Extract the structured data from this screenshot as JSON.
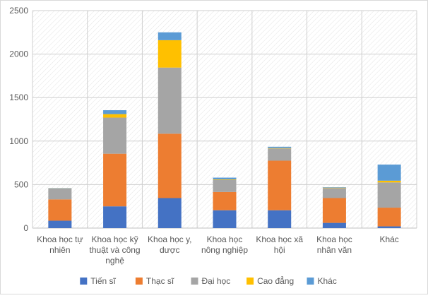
{
  "chart_data": {
    "type": "bar",
    "stacked": true,
    "categories": [
      [
        "Khoa học tự",
        "nhiên"
      ],
      [
        "Khoa học kỹ",
        "thuật và công",
        "nghệ"
      ],
      [
        "Khoa học y,",
        "dược"
      ],
      [
        "Khoa học",
        "nông nghiệp"
      ],
      [
        "Khoa học xã",
        "hội"
      ],
      [
        "Khoa học",
        "nhân văn"
      ],
      [
        "Khác"
      ]
    ],
    "series": [
      {
        "name": "Tiến sĩ",
        "color": "#4472C4",
        "values": [
          85,
          250,
          345,
          205,
          205,
          60,
          20
        ]
      },
      {
        "name": "Thạc sĩ",
        "color": "#ED7D31",
        "values": [
          245,
          605,
          740,
          210,
          570,
          285,
          215
        ]
      },
      {
        "name": "Đại học",
        "color": "#A5A5A5",
        "values": [
          125,
          415,
          760,
          140,
          140,
          115,
          290
        ]
      },
      {
        "name": "Cao đẳng",
        "color": "#FFC000",
        "values": [
          2,
          40,
          315,
          5,
          5,
          5,
          20
        ]
      },
      {
        "name": "Khác",
        "color": "#5B9BD5",
        "values": [
          3,
          45,
          90,
          20,
          15,
          5,
          185
        ]
      }
    ],
    "ylim": [
      0,
      2500
    ],
    "yticks": [
      0,
      500,
      1000,
      1500,
      2000,
      2500
    ],
    "ytick_labels": [
      "0",
      "500",
      "1000",
      "1500",
      "2000",
      "2500"
    ],
    "title": "",
    "xlabel": "",
    "ylabel": "",
    "grid": true,
    "legend_position": "bottom"
  }
}
